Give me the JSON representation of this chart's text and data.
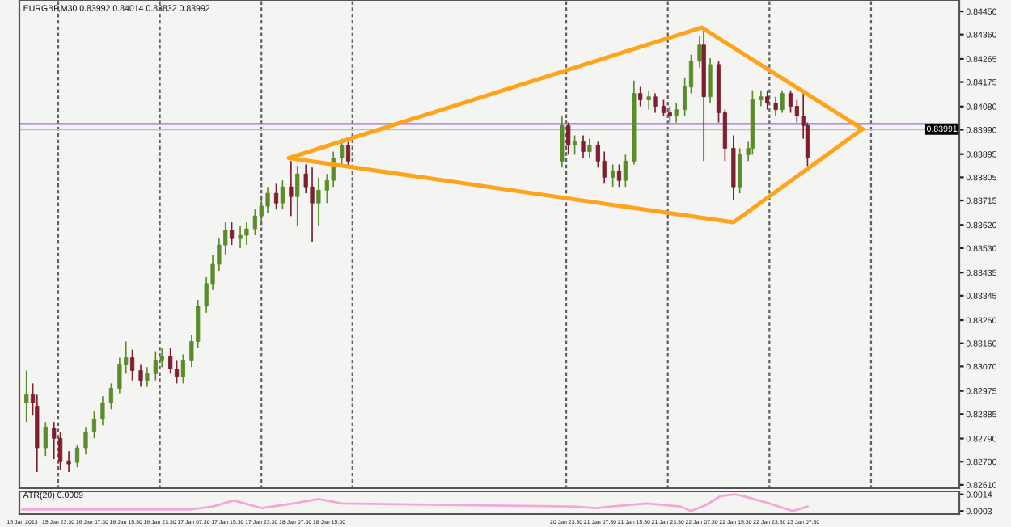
{
  "chart_data": [
    {
      "type": "candlestick",
      "title": "EURGBP,M30 0.83992 0.84014 0.83832 0.83992",
      "x": [
        "2013-01-15T16:00",
        "2013-01-15T17:30",
        "2013-01-15T18:30",
        "2013-01-15T20:30",
        "2013-01-15T22:30",
        "2013-01-16T00:00",
        "2013-01-16T02:00",
        "2013-01-16T04:00",
        "2013-01-16T06:00",
        "2013-01-16T08:00",
        "2013-01-16T10:00",
        "2013-01-16T12:00",
        "2013-01-16T14:00",
        "2013-01-16T15:30",
        "2013-01-16T17:00",
        "2013-01-16T19:00",
        "2013-01-16T20:30",
        "2013-01-16T22:30",
        "2013-01-17T00:00",
        "2013-01-17T02:00",
        "2013-01-17T03:30",
        "2013-01-17T05:00",
        "2013-01-17T07:00",
        "2013-01-17T08:30",
        "2013-01-17T10:30",
        "2013-01-17T12:00",
        "2013-01-17T13:30",
        "2013-01-17T15:00",
        "2013-01-17T16:30",
        "2013-01-17T18:30",
        "2013-01-17T20:00",
        "2013-01-17T22:00",
        "2013-01-17T23:30",
        "2013-01-18T01:00",
        "2013-01-18T03:00",
        "2013-01-18T04:30",
        "2013-01-18T06:30",
        "2013-01-18T08:00",
        "2013-01-18T10:00",
        "2013-01-18T11:30",
        "2013-01-18T13:00",
        "2013-01-18T15:00",
        "2013-01-18T16:30",
        "2013-01-18T18:30",
        "2013-01-18T20:00",
        "2013-01-20T22:30",
        "2013-01-21T00:00",
        "2013-01-21T01:30",
        "2013-01-21T03:30",
        "2013-01-21T05:00",
        "2013-01-21T07:00",
        "2013-01-21T08:30",
        "2013-01-21T10:30",
        "2013-01-21T12:00",
        "2013-01-21T13:30",
        "2013-01-21T15:30",
        "2013-01-21T17:00",
        "2013-01-21T19:00",
        "2013-01-21T20:30",
        "2013-01-21T22:30",
        "2013-01-22T00:00",
        "2013-01-22T01:30",
        "2013-01-22T03:30",
        "2013-01-22T05:00",
        "2013-01-22T07:00",
        "2013-01-22T08:00",
        "2013-01-22T09:30",
        "2013-01-22T11:30",
        "2013-01-22T13:00",
        "2013-01-22T15:00",
        "2013-01-22T16:30",
        "2013-01-22T18:30",
        "2013-01-22T19:30",
        "2013-01-22T21:30",
        "2013-01-22T23:00",
        "2013-01-23T01:00",
        "2013-01-23T02:30",
        "2013-01-23T04:30",
        "2013-01-23T06:00",
        "2013-01-23T07:30",
        "2013-01-23T08:30"
      ],
      "ohlc": [
        [
          0.82929,
          0.83054,
          0.82854,
          0.8296
        ],
        [
          0.8296,
          0.83004,
          0.82879,
          0.82929
        ],
        [
          0.82916,
          0.8296,
          0.8266,
          0.82754
        ],
        [
          0.82754,
          0.82854,
          0.82722,
          0.82835
        ],
        [
          0.82829,
          0.82854,
          0.8271,
          0.82791
        ],
        [
          0.82791,
          0.82816,
          0.82666,
          0.82703
        ],
        [
          0.82703,
          0.82741,
          0.8266,
          0.82691
        ],
        [
          0.82697,
          0.82766,
          0.82678,
          0.82754
        ],
        [
          0.82754,
          0.82835,
          0.82728,
          0.82816
        ],
        [
          0.82816,
          0.82898,
          0.82791,
          0.82866
        ],
        [
          0.82866,
          0.82954,
          0.82841,
          0.82929
        ],
        [
          0.82929,
          0.83004,
          0.82904,
          0.82985
        ],
        [
          0.82985,
          0.83104,
          0.82966,
          0.83079
        ],
        [
          0.83079,
          0.83167,
          0.83042,
          0.83104
        ],
        [
          0.83104,
          0.83135,
          0.83016,
          0.83054
        ],
        [
          0.83054,
          0.83079,
          0.82991,
          0.83016
        ],
        [
          0.83016,
          0.83067,
          0.82991,
          0.83042
        ],
        [
          0.83042,
          0.83129,
          0.83016,
          0.83092
        ],
        [
          0.83092,
          0.83142,
          0.83067,
          0.8311
        ],
        [
          0.8311,
          0.83142,
          0.83042,
          0.8306
        ],
        [
          0.8306,
          0.83092,
          0.83004,
          0.83029
        ],
        [
          0.83029,
          0.83117,
          0.83004,
          0.83092
        ],
        [
          0.83092,
          0.83192,
          0.83067,
          0.83167
        ],
        [
          0.83167,
          0.83329,
          0.83142,
          0.83304
        ],
        [
          0.83304,
          0.83417,
          0.83279,
          0.83392
        ],
        [
          0.83392,
          0.83505,
          0.83367,
          0.83467
        ],
        [
          0.83467,
          0.83567,
          0.83442,
          0.83542
        ],
        [
          0.83542,
          0.8363,
          0.83505,
          0.83599
        ],
        [
          0.83599,
          0.8363,
          0.83542,
          0.83567
        ],
        [
          0.83567,
          0.83617,
          0.8353,
          0.8358
        ],
        [
          0.8358,
          0.8363,
          0.83542,
          0.83605
        ],
        [
          0.83605,
          0.8368,
          0.8358,
          0.83655
        ],
        [
          0.83655,
          0.83718,
          0.8363,
          0.83693
        ],
        [
          0.83693,
          0.83768,
          0.83668,
          0.83743
        ],
        [
          0.83743,
          0.8378,
          0.8368,
          0.83705
        ],
        [
          0.83705,
          0.83793,
          0.8368,
          0.83768
        ],
        [
          0.83768,
          0.83868,
          0.83655,
          0.8373
        ],
        [
          0.8373,
          0.83849,
          0.83617,
          0.83818
        ],
        [
          0.83818,
          0.83855,
          0.83743,
          0.83768
        ],
        [
          0.83768,
          0.83843,
          0.83555,
          0.83705
        ],
        [
          0.83705,
          0.83805,
          0.83617,
          0.83755
        ],
        [
          0.83755,
          0.83818,
          0.83705,
          0.83793
        ],
        [
          0.83793,
          0.83905,
          0.83768,
          0.8388
        ],
        [
          0.8388,
          0.83955,
          0.83855,
          0.8393
        ],
        [
          0.8393,
          0.83943,
          0.83843,
          0.83868
        ],
        [
          0.83868,
          0.84043,
          0.83843,
          0.84006
        ],
        [
          0.84006,
          0.84018,
          0.83893,
          0.8393
        ],
        [
          0.8393,
          0.83968,
          0.83893,
          0.83943
        ],
        [
          0.83943,
          0.83968,
          0.8388,
          0.83905
        ],
        [
          0.83905,
          0.83955,
          0.8388,
          0.8393
        ],
        [
          0.8393,
          0.83943,
          0.83843,
          0.83868
        ],
        [
          0.83868,
          0.83905,
          0.8378,
          0.83805
        ],
        [
          0.83805,
          0.83855,
          0.83768,
          0.8383
        ],
        [
          0.8383,
          0.83855,
          0.83768,
          0.83793
        ],
        [
          0.83793,
          0.83893,
          0.83768,
          0.83868
        ],
        [
          0.83868,
          0.84181,
          0.83855,
          0.84131
        ],
        [
          0.84131,
          0.84156,
          0.84081,
          0.84106
        ],
        [
          0.84106,
          0.84143,
          0.84068,
          0.84118
        ],
        [
          0.84118,
          0.84131,
          0.84056,
          0.84081
        ],
        [
          0.84081,
          0.84106,
          0.84043,
          0.84056
        ],
        [
          0.84056,
          0.84081,
          0.84018,
          0.84043
        ],
        [
          0.84043,
          0.84093,
          0.84018,
          0.84068
        ],
        [
          0.84068,
          0.84193,
          0.84043,
          0.84156
        ],
        [
          0.84156,
          0.84281,
          0.84131,
          0.84256
        ],
        [
          0.84256,
          0.84356,
          0.84231,
          0.84319
        ],
        [
          0.84319,
          0.84387,
          0.83868,
          0.84118
        ],
        [
          0.84118,
          0.84268,
          0.84093,
          0.84243
        ],
        [
          0.84243,
          0.84256,
          0.84018,
          0.84056
        ],
        [
          0.84056,
          0.84068,
          0.83868,
          0.83918
        ],
        [
          0.83918,
          0.83968,
          0.83718,
          0.83768
        ],
        [
          0.83768,
          0.83918,
          0.83743,
          0.83893
        ],
        [
          0.83893,
          0.83943,
          0.83868,
          0.83918
        ],
        [
          0.83918,
          0.84143,
          0.83893,
          0.84106
        ],
        [
          0.84106,
          0.84143,
          0.84081,
          0.84118
        ],
        [
          0.84118,
          0.84143,
          0.84068,
          0.84093
        ],
        [
          0.84093,
          0.84118,
          0.84043,
          0.84068
        ],
        [
          0.84068,
          0.84143,
          0.84056,
          0.84131
        ],
        [
          0.84131,
          0.84143,
          0.84056,
          0.84081
        ],
        [
          0.84081,
          0.84106,
          0.84018,
          0.84043
        ],
        [
          0.84043,
          0.84137,
          0.83955,
          0.84006
        ],
        [
          0.84006,
          0.84018,
          0.83849,
          0.8388
        ]
      ],
      "colors": [
        "#5b8c2a",
        "#7d1f2e",
        "#7d1f2e",
        "#5b8c2a",
        "#7d1f2e",
        "#7d1f2e",
        "#7d1f2e",
        "#5b8c2a",
        "#5b8c2a",
        "#5b8c2a",
        "#5b8c2a",
        "#5b8c2a",
        "#5b8c2a",
        "#5b8c2a",
        "#7d1f2e",
        "#7d1f2e",
        "#5b8c2a",
        "#5b8c2a",
        "#5b8c2a",
        "#7d1f2e",
        "#7d1f2e",
        "#5b8c2a",
        "#5b8c2a",
        "#5b8c2a",
        "#5b8c2a",
        "#5b8c2a",
        "#5b8c2a",
        "#5b8c2a",
        "#7d1f2e",
        "#5b8c2a",
        "#5b8c2a",
        "#5b8c2a",
        "#5b8c2a",
        "#5b8c2a",
        "#7d1f2e",
        "#5b8c2a",
        "#7d1f2e",
        "#5b8c2a",
        "#7d1f2e",
        "#7d1f2e",
        "#5b8c2a",
        "#5b8c2a",
        "#5b8c2a",
        "#5b8c2a",
        "#7d1f2e",
        "#5b8c2a",
        "#7d1f2e",
        "#5b8c2a",
        "#7d1f2e",
        "#5b8c2a",
        "#7d1f2e",
        "#7d1f2e",
        "#5b8c2a",
        "#7d1f2e",
        "#5b8c2a",
        "#5b8c2a",
        "#7d1f2e",
        "#5b8c2a",
        "#7d1f2e",
        "#7d1f2e",
        "#7d1f2e",
        "#5b8c2a",
        "#5b8c2a",
        "#5b8c2a",
        "#5b8c2a",
        "#7d1f2e",
        "#5b8c2a",
        "#7d1f2e",
        "#7d1f2e",
        "#7d1f2e",
        "#5b8c2a",
        "#5b8c2a",
        "#5b8c2a",
        "#5b8c2a",
        "#7d1f2e",
        "#7d1f2e",
        "#5b8c2a",
        "#7d1f2e",
        "#7d1f2e",
        "#7d1f2e",
        "#7d1f2e"
      ],
      "series": [
        {
          "type": "line",
          "color": "#ffa31a",
          "x": [
            "2013-01-18T06:00",
            "2013-01-22T07:30",
            "2013-01-23T21:30"
          ],
          "values": [
            0.8388,
            0.84387,
            0.83993
          ]
        },
        {
          "type": "line",
          "color": "#ffa31a",
          "x": [
            "2013-01-18T06:00",
            "2013-01-22T15:00",
            "2013-01-23T21:30"
          ],
          "values": [
            0.8388,
            0.8363,
            0.83993
          ]
        }
      ],
      "xlim": [
        "2013-01-15T14:20",
        "2013-01-24T20:20"
      ],
      "ylim": [
        0.82597,
        0.84494
      ],
      "yticks": [
        {
          "value": 0.8261,
          "label": "0.82610"
        },
        {
          "value": 0.827,
          "label": "0.82700"
        },
        {
          "value": 0.8279,
          "label": "0.82790"
        },
        0.82885,
        0.82975,
        {
          "value": 0.8307,
          "label": "0.83070"
        },
        {
          "value": 0.8316,
          "label": "0.83160"
        },
        {
          "value": 0.8325,
          "label": "0.83250"
        },
        0.83345,
        0.83435,
        {
          "value": 0.8353,
          "label": "0.83530"
        },
        {
          "value": 0.8362,
          "label": "0.83620"
        },
        0.83715,
        0.83805,
        0.83895,
        {
          "value": 0.8399,
          "label": "0.83990"
        },
        {
          "value": 0.8408,
          "label": "0.84080"
        },
        0.84175,
        0.84265,
        {
          "value": 0.8436,
          "label": "0.84360"
        },
        {
          "value": 0.8445,
          "label": "0.84450"
        }
      ],
      "tick_labels": "y",
      "ref_lines": [
        {
          "axis": "y",
          "value": 0.84012,
          "color": "#a070e0"
        },
        {
          "axis": "y",
          "value": 0.83991,
          "label": "0.83991",
          "color": "#c0c0c0"
        },
        {
          "axis": "x",
          "value": "2013-01-15T23:30",
          "color": "#606060",
          "line_style": "dotted"
        },
        {
          "axis": "x",
          "value": "2013-01-16T23:30",
          "color": "#606060",
          "line_style": "dotted"
        },
        {
          "axis": "x",
          "value": "2013-01-17T23:30",
          "color": "#606060",
          "line_style": "dotted"
        },
        {
          "axis": "x",
          "value": "2013-01-18T21:00",
          "color": "#606060",
          "line_style": "dotted"
        },
        {
          "axis": "x",
          "value": "2013-01-20T23:30",
          "color": "#606060",
          "line_style": "dotted"
        },
        {
          "axis": "x",
          "value": "2013-01-21T23:30",
          "color": "#606060",
          "line_style": "dotted"
        },
        {
          "axis": "x",
          "value": "2013-01-22T23:30",
          "color": "#606060",
          "line_style": "dotted"
        },
        {
          "axis": "x",
          "value": "2013-01-23T23:30",
          "color": "#606060",
          "line_style": "dotted"
        }
      ]
    },
    {
      "type": "line",
      "title": "ATR(20) 0.0009",
      "series": [
        {
          "color": "#f4a6d7",
          "x": [
            "2013-01-15T15:00",
            "2013-01-17T06:30",
            "2013-01-17T12:00",
            "2013-01-17T17:00",
            "2013-01-17T23:30",
            "2013-01-18T07:00",
            "2013-01-18T13:00",
            "2013-01-18T18:30",
            "2013-01-21T01:00",
            "2013-01-21T06:30",
            "2013-01-21T10:00",
            "2013-01-21T18:30",
            "2013-01-22T02:30",
            "2013-01-22T05:00",
            "2013-01-22T08:30",
            "2013-01-22T12:00",
            "2013-01-22T15:30",
            "2013-01-22T18:30",
            "2013-01-22T23:30",
            "2013-01-23T05:00",
            "2013-01-23T08:30"
          ],
          "values": [
            0.0004,
            0.0004,
            0.0006,
            0.001,
            0.0005,
            0.0008,
            0.0011,
            0.0008,
            0.0006,
            0.0005,
            0.0006,
            0.0008,
            0.0006,
            0.0003,
            0.0007,
            0.0013,
            0.0014,
            0.0012,
            0.0008,
            0.0003,
            0.0006
          ]
        }
      ],
      "xlim": [
        "2013-01-15T14:20",
        "2013-01-24T20:20"
      ],
      "xticks": [
        {
          "value": "2013-01-15T15:00",
          "label": "15 Jan 2013"
        },
        {
          "value": "2013-01-15T23:30",
          "label": "15 Jan 23:30"
        },
        {
          "value": "2013-01-16T07:30",
          "label": "16 Jan 07:30"
        },
        {
          "value": "2013-01-16T15:30",
          "label": "16 Jan 15:30"
        },
        {
          "value": "2013-01-16T23:30",
          "label": "16 Jan 23:30"
        },
        {
          "value": "2013-01-17T07:30",
          "label": "17 Jan 07:30"
        },
        {
          "value": "2013-01-17T15:30",
          "label": "17 Jan 15:30"
        },
        {
          "value": "2013-01-17T23:30",
          "label": "17 Jan 23:30"
        },
        {
          "value": "2013-01-18T07:30",
          "label": "18 Jan 07:30"
        },
        {
          "value": "2013-01-18T15:30",
          "label": "18 Jan 15:30"
        },
        {
          "value": "2013-01-20T23:30",
          "label": "20 Jan 23:30"
        },
        {
          "value": "2013-01-21T07:30",
          "label": "21 Jan 07:30"
        },
        {
          "value": "2013-01-21T15:30",
          "label": "21 Jan 15:30"
        },
        {
          "value": "2013-01-21T23:30",
          "label": "21 Jan 23:30"
        },
        {
          "value": "2013-01-22T07:30",
          "label": "22 Jan 07:30"
        },
        {
          "value": "2013-01-22T15:30",
          "label": "22 Jan 15:30"
        },
        {
          "value": "2013-01-22T23:30",
          "label": "22 Jan 23:30"
        },
        {
          "value": "2013-01-23T07:30",
          "label": "23 Jan 07:30"
        }
      ],
      "ylim": [
        0.0001,
        0.0016
      ],
      "yticks": [
        0.0003,
        0.0014
      ]
    }
  ]
}
